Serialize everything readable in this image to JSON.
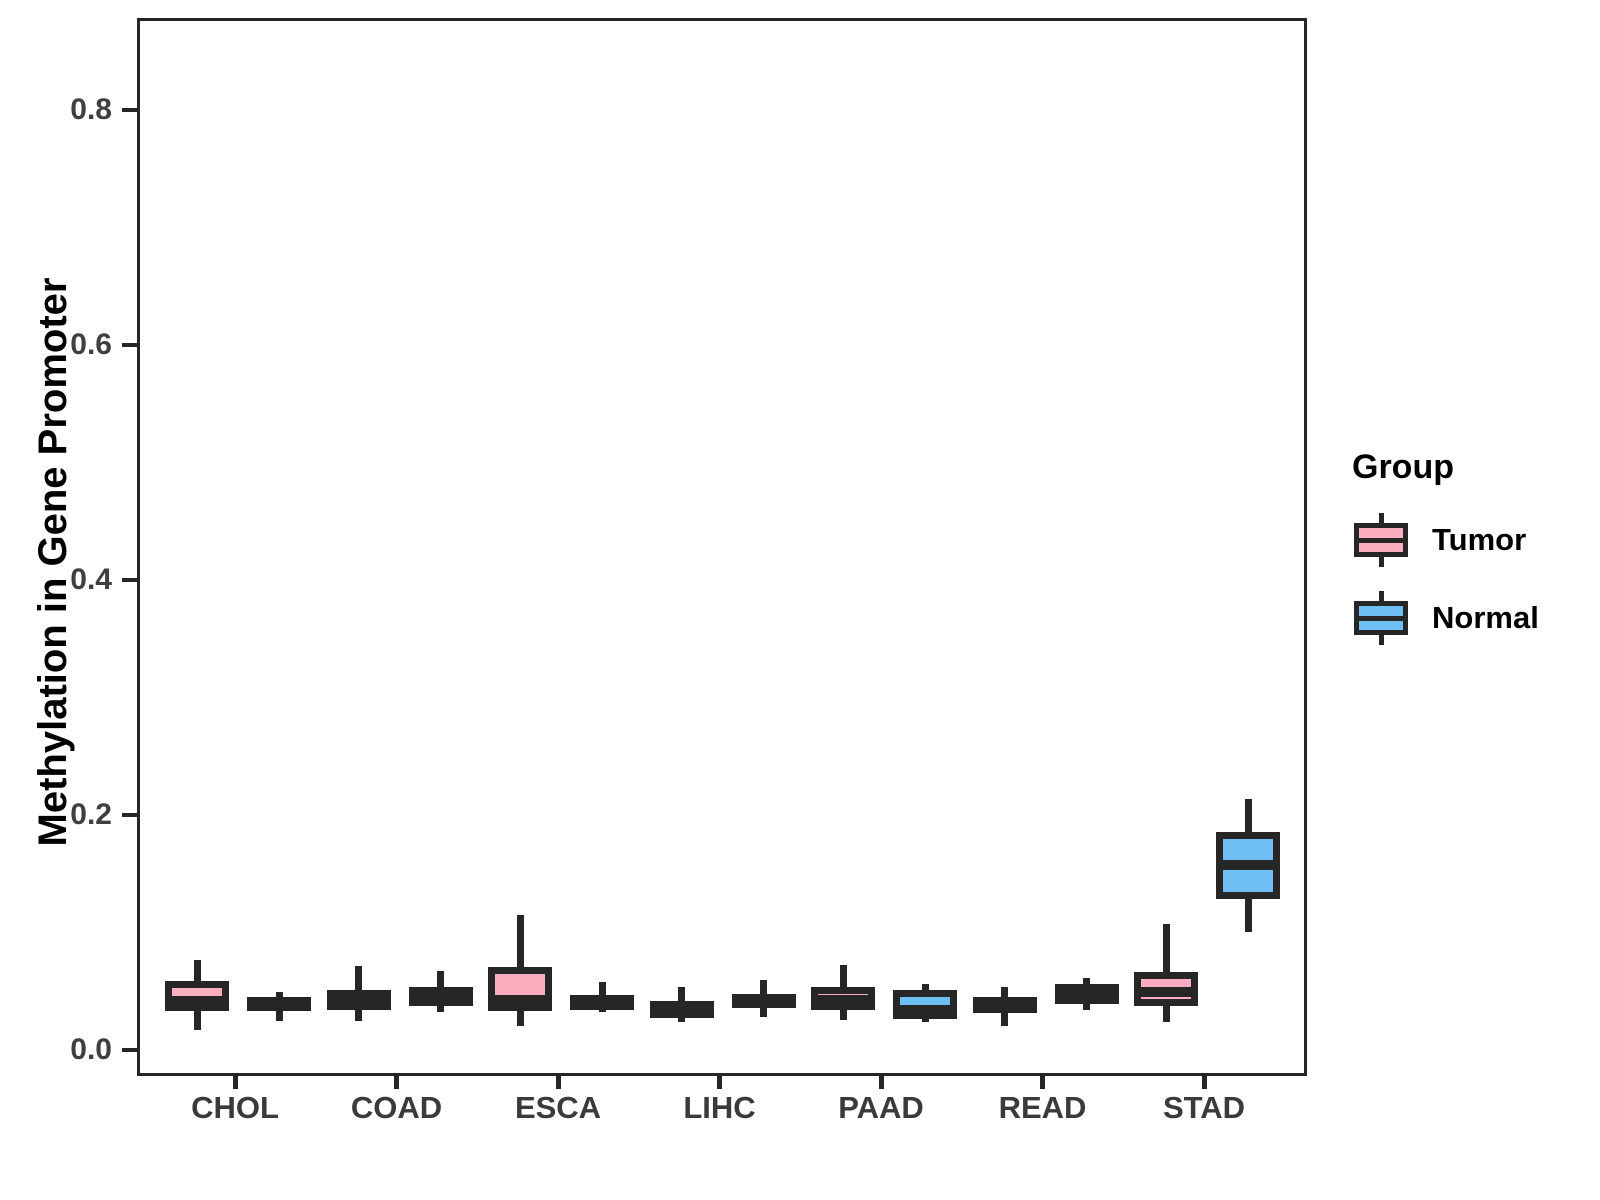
{
  "chart_data": {
    "type": "grouped_boxplot",
    "title": "",
    "xlabel": "",
    "ylabel": "Methylation in Gene Promoter",
    "categories": [
      "CHOL",
      "COAD",
      "ESCA",
      "LIHC",
      "PAAD",
      "READ",
      "STAD"
    ],
    "yticks": [
      0.0,
      0.2,
      0.4,
      0.6,
      0.8
    ],
    "ytick_labels": [
      "0.0",
      "0.2",
      "0.4",
      "0.6",
      "0.8"
    ],
    "ylim": [
      -0.017,
      0.878
    ],
    "grid": false,
    "legend": {
      "title": "Group",
      "position": "right"
    },
    "colors": {
      "tumor": "#FAADBF",
      "normal": "#70BFF4",
      "stroke": "#262626"
    },
    "series": [
      {
        "name": "Tumor",
        "color": "#FAADBF",
        "boxes": [
          {
            "low": 0.02,
            "q1": 0.036,
            "median": 0.044,
            "q3": 0.061,
            "high": 0.079
          },
          {
            "low": 0.027,
            "q1": 0.037,
            "median": 0.045,
            "q3": 0.054,
            "high": 0.074
          },
          {
            "low": 0.023,
            "q1": 0.036,
            "median": 0.045,
            "q3": 0.073,
            "high": 0.117
          },
          {
            "low": 0.026,
            "q1": 0.03,
            "median": 0.039,
            "q3": 0.044,
            "high": 0.056
          },
          {
            "low": 0.028,
            "q1": 0.037,
            "median": 0.045,
            "q3": 0.056,
            "high": 0.075
          },
          {
            "low": 0.023,
            "q1": 0.034,
            "median": 0.043,
            "q3": 0.047,
            "high": 0.056
          },
          {
            "low": 0.026,
            "q1": 0.04,
            "median": 0.052,
            "q3": 0.069,
            "high": 0.11
          }
        ]
      },
      {
        "name": "Normal",
        "color": "#70BFF4",
        "boxes": [
          {
            "low": 0.027,
            "q1": 0.036,
            "median": 0.043,
            "q3": 0.048,
            "high": 0.052
          },
          {
            "low": 0.035,
            "q1": 0.04,
            "median": 0.048,
            "q3": 0.056,
            "high": 0.07
          },
          {
            "low": 0.035,
            "q1": 0.037,
            "median": 0.043,
            "q3": 0.049,
            "high": 0.06
          },
          {
            "low": 0.031,
            "q1": 0.038,
            "median": 0.044,
            "q3": 0.05,
            "high": 0.062
          },
          {
            "low": 0.026,
            "q1": 0.029,
            "median": 0.037,
            "q3": 0.054,
            "high": 0.059
          },
          {
            "low": 0.037,
            "q1": 0.042,
            "median": 0.05,
            "q3": 0.059,
            "high": 0.064
          },
          {
            "low": 0.103,
            "q1": 0.131,
            "median": 0.16,
            "q3": 0.188,
            "high": 0.216
          }
        ]
      }
    ]
  }
}
